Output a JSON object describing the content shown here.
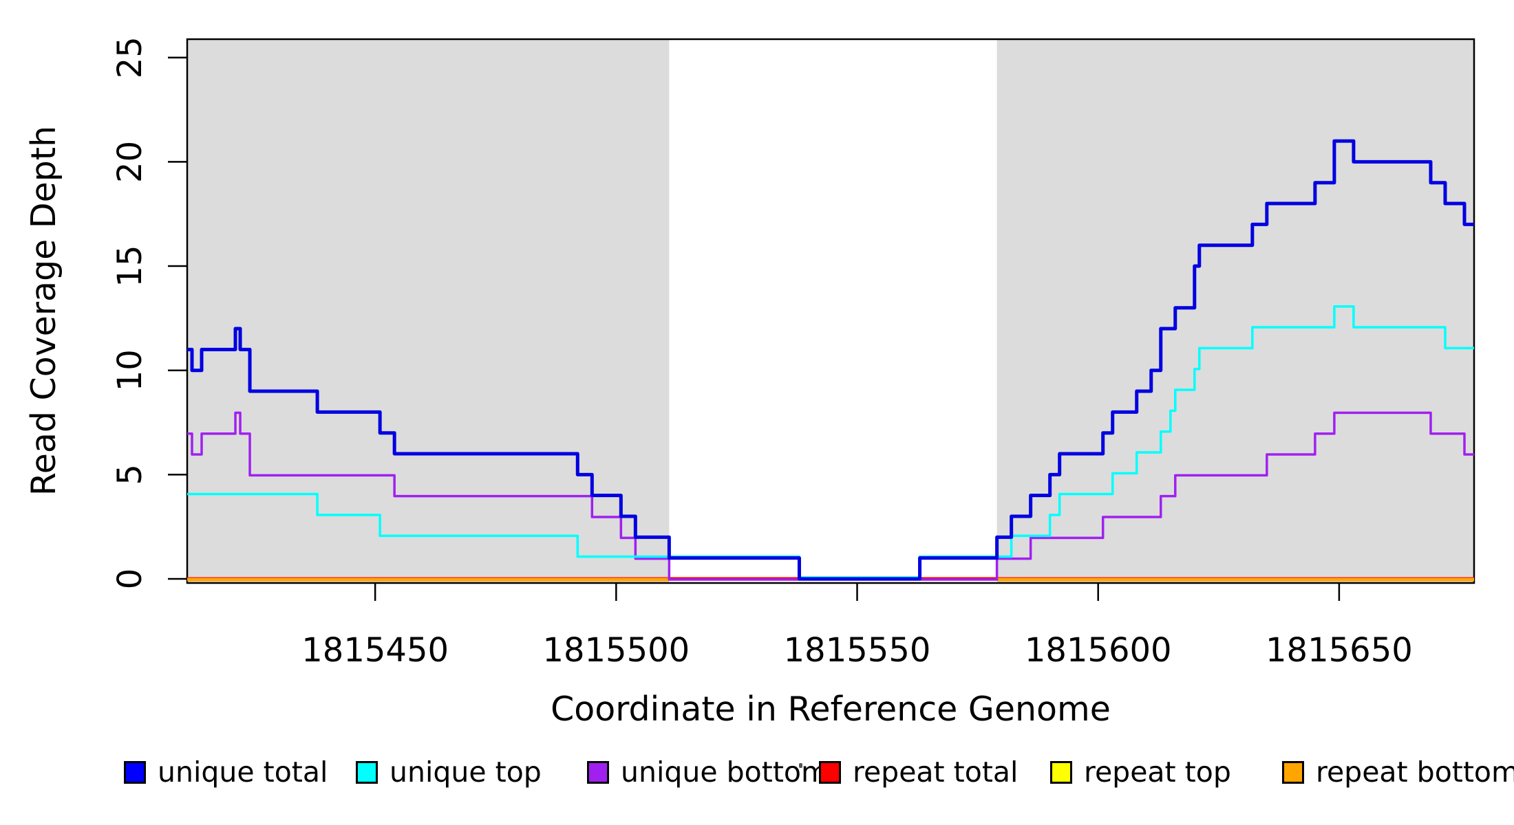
{
  "figure": {
    "xlabel": "Coordinate in Reference Genome",
    "ylabel": "Read Coverage Depth"
  },
  "chart_data": {
    "type": "line",
    "subtype": "step-coverage-plot",
    "title": "",
    "xlabel": "Coordinate in Reference Genome",
    "ylabel": "Read Coverage Depth",
    "x_range": [
      1815411,
      1815678
    ],
    "y_range": [
      0,
      25
    ],
    "x_ticks": [
      1815450,
      1815500,
      1815550,
      1815600,
      1815650
    ],
    "y_ticks": [
      0,
      5,
      10,
      15,
      20,
      25
    ],
    "grid": false,
    "legend_position": "bottom",
    "shaded_regions": {
      "label": "repeat-region-shading",
      "color": "#DCDCDC",
      "intervals": [
        [
          1815411,
          1815511
        ],
        [
          1815579,
          1815678
        ]
      ]
    },
    "series": [
      {
        "name": "unique total",
        "color": "#0000E0",
        "values": [
          [
            1815411,
            11
          ],
          [
            1815412,
            10
          ],
          [
            1815414,
            11
          ],
          [
            1815421,
            12
          ],
          [
            1815422,
            11
          ],
          [
            1815424,
            9
          ],
          [
            1815438,
            8
          ],
          [
            1815451,
            7
          ],
          [
            1815454,
            6
          ],
          [
            1815492,
            5
          ],
          [
            1815495,
            4
          ],
          [
            1815501,
            3
          ],
          [
            1815504,
            2
          ],
          [
            1815511,
            1
          ],
          [
            1815538,
            0
          ],
          [
            1815563,
            1
          ],
          [
            1815579,
            2
          ],
          [
            1815582,
            3
          ],
          [
            1815586,
            4
          ],
          [
            1815590,
            5
          ],
          [
            1815592,
            6
          ],
          [
            1815601,
            7
          ],
          [
            1815603,
            8
          ],
          [
            1815608,
            9
          ],
          [
            1815611,
            10
          ],
          [
            1815613,
            12
          ],
          [
            1815616,
            13
          ],
          [
            1815620,
            15
          ],
          [
            1815621,
            16
          ],
          [
            1815632,
            17
          ],
          [
            1815635,
            18
          ],
          [
            1815645,
            19
          ],
          [
            1815649,
            21
          ],
          [
            1815653,
            20
          ],
          [
            1815669,
            19
          ],
          [
            1815672,
            18
          ],
          [
            1815676,
            17
          ],
          [
            1815678,
            17
          ]
        ]
      },
      {
        "name": "unique top",
        "color": "#00FFFF",
        "values": [
          [
            1815411,
            4
          ],
          [
            1815438,
            3
          ],
          [
            1815451,
            2
          ],
          [
            1815492,
            1
          ],
          [
            1815538,
            0
          ],
          [
            1815563,
            1
          ],
          [
            1815582,
            2
          ],
          [
            1815590,
            3
          ],
          [
            1815592,
            4
          ],
          [
            1815603,
            5
          ],
          [
            1815608,
            6
          ],
          [
            1815613,
            7
          ],
          [
            1815615,
            8
          ],
          [
            1815616,
            9
          ],
          [
            1815620,
            10
          ],
          [
            1815621,
            11
          ],
          [
            1815632,
            12
          ],
          [
            1815649,
            13
          ],
          [
            1815653,
            12
          ],
          [
            1815672,
            11
          ],
          [
            1815678,
            11
          ]
        ]
      },
      {
        "name": "unique bottom",
        "color": "#A020F0",
        "values": [
          [
            1815411,
            7
          ],
          [
            1815412,
            6
          ],
          [
            1815414,
            7
          ],
          [
            1815421,
            8
          ],
          [
            1815422,
            7
          ],
          [
            1815424,
            5
          ],
          [
            1815454,
            4
          ],
          [
            1815495,
            3
          ],
          [
            1815501,
            2
          ],
          [
            1815504,
            1
          ],
          [
            1815511,
            0
          ],
          [
            1815579,
            1
          ],
          [
            1815586,
            2
          ],
          [
            1815601,
            3
          ],
          [
            1815613,
            4
          ],
          [
            1815616,
            5
          ],
          [
            1815635,
            6
          ],
          [
            1815645,
            7
          ],
          [
            1815649,
            8
          ],
          [
            1815669,
            7
          ],
          [
            1815676,
            6
          ],
          [
            1815678,
            6
          ]
        ]
      },
      {
        "name": "repeat total",
        "color": "#FF0000",
        "values": [
          [
            1815411,
            0
          ],
          [
            1815678,
            0
          ]
        ]
      },
      {
        "name": "repeat top",
        "color": "#FFFF00",
        "values": [
          [
            1815411,
            0
          ],
          [
            1815678,
            0
          ]
        ]
      },
      {
        "name": "repeat bottom",
        "color": "#FFA500",
        "values": [
          [
            1815411,
            0
          ],
          [
            1815678,
            0
          ]
        ]
      }
    ],
    "legend": [
      {
        "label": "unique total",
        "color": "#0000FF"
      },
      {
        "label": "unique top",
        "color": "#00FFFF"
      },
      {
        "label": "unique bottom",
        "color": "#A020F0"
      },
      {
        "label": "repeat total",
        "color": "#FF0000"
      },
      {
        "label": "repeat top",
        "color": "#FFFF00"
      },
      {
        "label": "repeat bottom",
        "color": "#FFA500"
      }
    ]
  }
}
